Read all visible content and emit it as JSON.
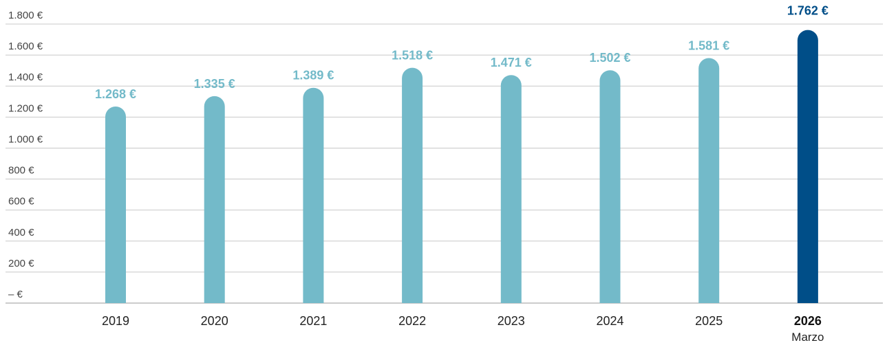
{
  "chart_data": {
    "type": "bar",
    "title": "",
    "xlabel": "",
    "ylabel": "",
    "ylim": [
      0,
      1800
    ],
    "yticks": [
      {
        "value": 0,
        "label": "– €"
      },
      {
        "value": 200,
        "label": "200 €"
      },
      {
        "value": 400,
        "label": "400 €"
      },
      {
        "value": 600,
        "label": "600 €"
      },
      {
        "value": 800,
        "label": "800 €"
      },
      {
        "value": 1000,
        "label": "1.000 €"
      },
      {
        "value": 1200,
        "label": "1.200 €"
      },
      {
        "value": 1400,
        "label": "1.400 €"
      },
      {
        "value": 1600,
        "label": "1.600 €"
      },
      {
        "value": 1800,
        "label": "1.800 €"
      }
    ],
    "grid": true,
    "categories": [
      "2019",
      "2020",
      "2021",
      "2022",
      "2023",
      "2024",
      "2025",
      "2026"
    ],
    "category_sublabels": [
      "",
      "",
      "",
      "",
      "",
      "",
      "",
      "Marzo"
    ],
    "highlighted_category": "2026",
    "values": [
      1268,
      1335,
      1389,
      1518,
      1471,
      1502,
      1581,
      1762
    ],
    "data_labels": [
      "1.268 €",
      "1.335 €",
      "1.389 €",
      "1.518 €",
      "1.471 €",
      "1.502 €",
      "1.581 €",
      "1.762 €"
    ],
    "colors": {
      "bar": "#73bac9",
      "highlight_bar": "#004e88",
      "label": "#73bac9",
      "highlight_label": "#004e88"
    }
  }
}
